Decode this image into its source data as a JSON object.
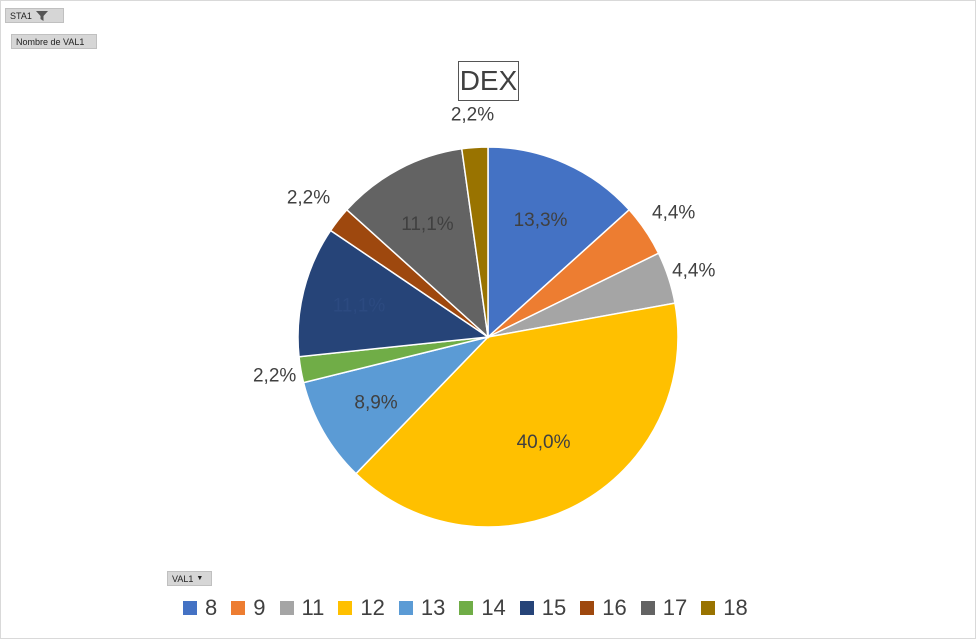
{
  "pivot": {
    "filter_field": "STA1",
    "value_field": "Nombre de VAL1",
    "axis_field": "VAL1"
  },
  "chart_data": {
    "type": "pie",
    "title": "DEX",
    "categories": [
      "8",
      "9",
      "11",
      "12",
      "13",
      "14",
      "15",
      "16",
      "17",
      "18"
    ],
    "values": [
      13.3,
      4.4,
      4.4,
      40.0,
      8.9,
      2.2,
      11.1,
      2.2,
      11.1,
      2.2
    ],
    "data_labels": [
      "13,3%",
      "4,4%",
      "4,4%",
      "40,0%",
      "8,9%",
      "2,2%",
      "11,1%",
      "2,2%",
      "11,1%",
      "2,2%"
    ],
    "colors": [
      "#4472C4",
      "#ED7D31",
      "#A5A5A5",
      "#FFC000",
      "#5B9BD5",
      "#70AD47",
      "#264478",
      "#9E480E",
      "#636363",
      "#997300"
    ],
    "legend_position": "bottom"
  }
}
